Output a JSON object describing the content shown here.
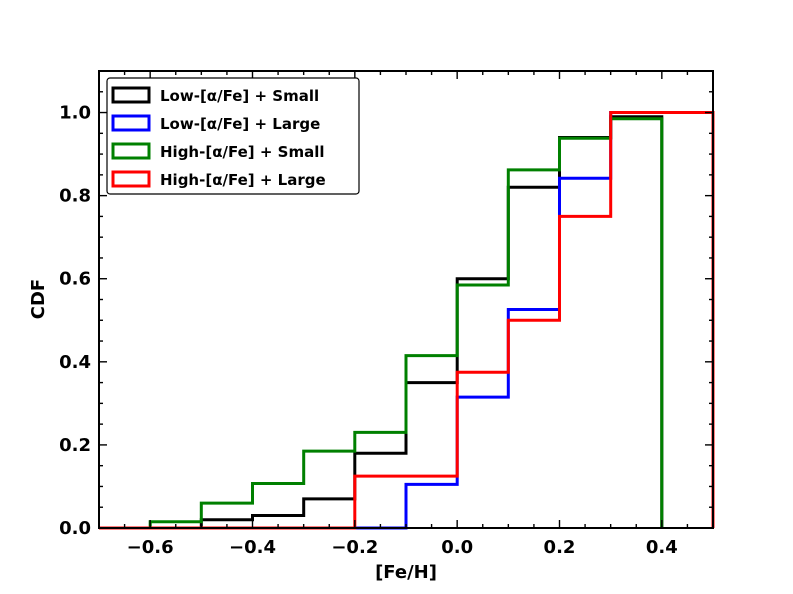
{
  "chart_data": {
    "type": "line",
    "subtype": "step-cdf",
    "xlabel": "[Fe/H]",
    "ylabel": "CDF",
    "xlim": [
      -0.7,
      0.5
    ],
    "ylim": [
      0.0,
      1.1
    ],
    "xticks": [
      -0.6,
      -0.4,
      -0.2,
      0.0,
      0.2,
      0.4
    ],
    "xtick_labels": [
      "−0.6",
      "−0.4",
      "−0.2",
      "0.0",
      "0.2",
      "0.4"
    ],
    "yticks": [
      0.0,
      0.2,
      0.4,
      0.6,
      0.8,
      1.0
    ],
    "ytick_labels": [
      "0.0",
      "0.2",
      "0.4",
      "0.6",
      "0.8",
      "1.0"
    ],
    "legend_position": "top-left",
    "series": [
      {
        "name": "Low-[α/Fe] + Small",
        "color": "#000000",
        "edges": [
          -0.7,
          -0.6,
          -0.5,
          -0.4,
          -0.3,
          -0.2,
          -0.1,
          0.0,
          0.1,
          0.2,
          0.3,
          0.4
        ],
        "values": [
          0.0,
          0.0,
          0.02,
          0.03,
          0.07,
          0.18,
          0.35,
          0.6,
          0.82,
          0.94,
          0.99
        ]
      },
      {
        "name": "Low-[α/Fe] + Large",
        "color": "#0000ff",
        "edges": [
          -0.7,
          -0.6,
          -0.5,
          -0.4,
          -0.3,
          -0.2,
          -0.1,
          0.0,
          0.1,
          0.2,
          0.3,
          0.5
        ],
        "values": [
          0.0,
          0.0,
          0.0,
          0.0,
          0.0,
          0.0,
          0.105,
          0.315,
          0.526,
          0.842,
          1.0
        ]
      },
      {
        "name": "High-[α/Fe] + Small",
        "color": "#008000",
        "edges": [
          -0.7,
          -0.6,
          -0.5,
          -0.4,
          -0.3,
          -0.2,
          -0.1,
          0.0,
          0.1,
          0.2,
          0.3,
          0.4
        ],
        "values": [
          0.0,
          0.015,
          0.06,
          0.107,
          0.185,
          0.23,
          0.415,
          0.585,
          0.862,
          0.938,
          0.985
        ]
      },
      {
        "name": "High-[α/Fe] + Large",
        "color": "#ff0000",
        "edges": [
          -0.7,
          -0.6,
          -0.5,
          -0.4,
          -0.3,
          -0.2,
          -0.1,
          0.0,
          0.1,
          0.2,
          0.3,
          0.5
        ],
        "values": [
          0.0,
          0.0,
          0.0,
          0.0,
          0.0,
          0.125,
          0.125,
          0.375,
          0.5,
          0.75,
          1.0
        ]
      }
    ]
  }
}
